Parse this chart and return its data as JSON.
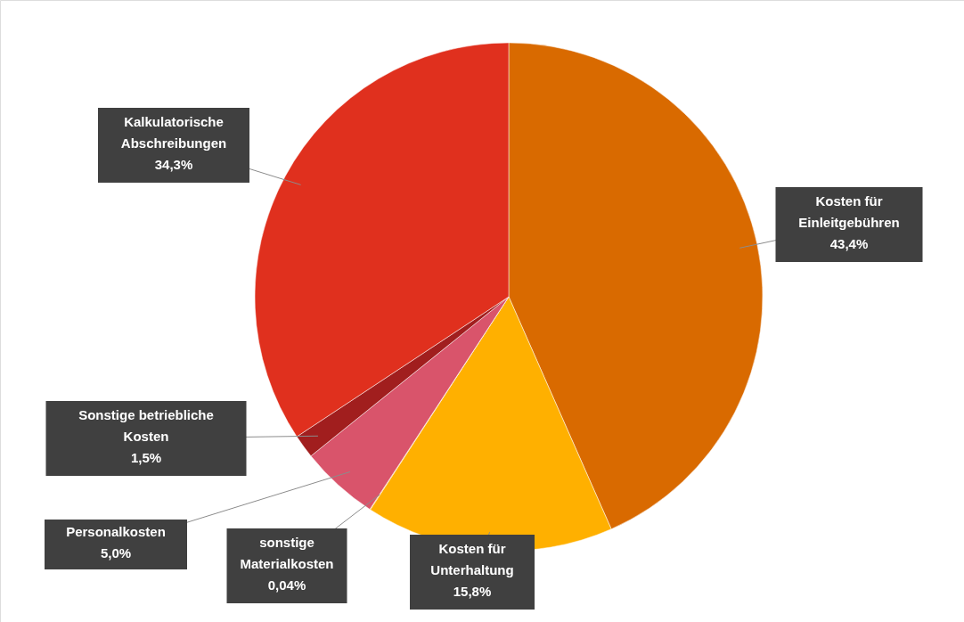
{
  "chart_data": {
    "type": "pie",
    "categories": [
      "Kosten für\nEinleitgebühren",
      "Kosten für\nUnterhaltung",
      "sonstige\nMaterialkosten",
      "Personalkosten",
      "Sonstige betriebliche\nKosten",
      "Kalkulatorische\nAbschreibungen"
    ],
    "values": [
      43.4,
      15.8,
      0.04,
      5.0,
      1.5,
      34.3
    ],
    "colors": [
      "#d96a00",
      "#ffb000",
      "#ffb000",
      "#d9546b",
      "#a11e1e",
      "#e0301e"
    ],
    "value_labels": [
      "43,4%",
      "15,8%",
      "0,04%",
      "5,0%",
      "1,5%",
      "34,3%"
    ]
  }
}
